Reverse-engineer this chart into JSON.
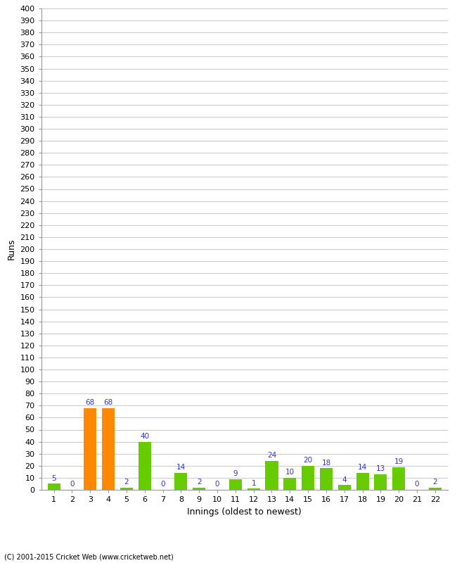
{
  "innings": [
    1,
    2,
    3,
    4,
    5,
    6,
    7,
    8,
    9,
    10,
    11,
    12,
    13,
    14,
    15,
    16,
    17,
    18,
    19,
    20,
    21,
    22
  ],
  "values": [
    5,
    0,
    68,
    68,
    2,
    40,
    0,
    14,
    2,
    0,
    9,
    1,
    24,
    10,
    20,
    18,
    4,
    14,
    13,
    19,
    0,
    2
  ],
  "colors": [
    "#66cc00",
    "#66cc00",
    "#ff8800",
    "#ff8800",
    "#66cc00",
    "#66cc00",
    "#66cc00",
    "#66cc00",
    "#66cc00",
    "#66cc00",
    "#66cc00",
    "#66cc00",
    "#66cc00",
    "#66cc00",
    "#66cc00",
    "#66cc00",
    "#66cc00",
    "#66cc00",
    "#66cc00",
    "#66cc00",
    "#66cc00",
    "#66cc00"
  ],
  "xlabel": "Innings (oldest to newest)",
  "ylabel": "Runs",
  "ylim": [
    0,
    400
  ],
  "ytick_step": 10,
  "background_color": "#ffffff",
  "grid_color": "#cccccc",
  "label_color": "#3333cc",
  "label_fontsize": 7.5,
  "axis_fontsize": 8,
  "copyright": "(C) 2001-2015 Cricket Web (www.cricketweb.net)"
}
